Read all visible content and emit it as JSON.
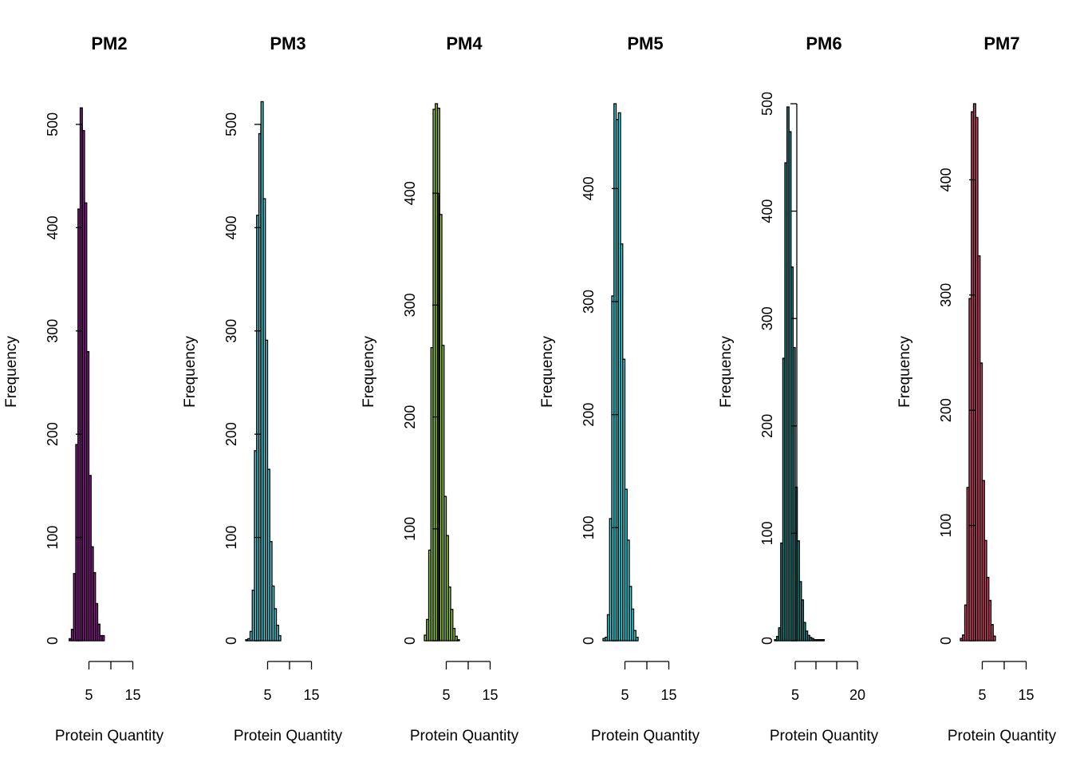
{
  "chart_data": [
    {
      "type": "bar",
      "title": "PM2",
      "xlabel": "Protein Quantity",
      "ylabel": "Frequency",
      "color": "#8B1A8B",
      "xlim": [
        0,
        20
      ],
      "ylim": [
        0,
        520
      ],
      "x_ticks": [
        5,
        10,
        15
      ],
      "x_tick_labels": [
        "5",
        "",
        "15"
      ],
      "y_ticks": [
        0,
        100,
        200,
        300,
        400,
        500
      ],
      "y_tick_labels": [
        "0",
        "100",
        "200",
        "300",
        "400",
        "500"
      ],
      "bin_start": 0.5,
      "bin_width": 0.5,
      "values": [
        2,
        11,
        65,
        190,
        418,
        516,
        494,
        424,
        280,
        160,
        91,
        66,
        36,
        16,
        5,
        5
      ]
    },
    {
      "type": "bar",
      "title": "PM3",
      "xlabel": "Protein Quantity",
      "ylabel": "Frequency",
      "color": "#4ED4DE",
      "xlim": [
        0,
        20
      ],
      "ylim": [
        0,
        520
      ],
      "x_ticks": [
        5,
        10,
        15
      ],
      "x_tick_labels": [
        "5",
        "",
        "15"
      ],
      "y_ticks": [
        0,
        100,
        200,
        300,
        400,
        500
      ],
      "y_tick_labels": [
        "0",
        "100",
        "200",
        "300",
        "400",
        "500"
      ],
      "bin_start": 0,
      "bin_width": 0.5,
      "values": [
        1,
        2,
        9,
        49,
        184,
        412,
        491,
        522,
        428,
        291,
        166,
        96,
        53,
        31,
        15,
        5
      ]
    },
    {
      "type": "bar",
      "title": "PM4",
      "xlabel": "Protein Quantity",
      "ylabel": "Frequency",
      "color": "#9BD13E",
      "xlim": [
        0,
        20
      ],
      "ylim": [
        0,
        480
      ],
      "x_ticks": [
        5,
        10,
        15
      ],
      "x_tick_labels": [
        "5",
        "",
        "15"
      ],
      "y_ticks": [
        0,
        100,
        200,
        300,
        400
      ],
      "y_tick_labels": [
        "0",
        "100",
        "200",
        "300",
        "400"
      ],
      "bin_start": 0,
      "bin_width": 0.5,
      "values": [
        5,
        19,
        81,
        262,
        475,
        480,
        476,
        381,
        264,
        129,
        94,
        48,
        28,
        11,
        4,
        1
      ]
    },
    {
      "type": "bar",
      "title": "PM5",
      "xlabel": "Protein Quantity",
      "ylabel": "Frequency",
      "color": "#28E6F0",
      "xlim": [
        0,
        20
      ],
      "ylim": [
        0,
        475
      ],
      "x_ticks": [
        5,
        10,
        15
      ],
      "x_tick_labels": [
        "5",
        "",
        "15"
      ],
      "y_ticks": [
        0,
        100,
        200,
        300,
        400
      ],
      "y_tick_labels": [
        "0",
        "100",
        "200",
        "300",
        "400"
      ],
      "bin_start": 0,
      "bin_width": 0.5,
      "values": [
        2,
        3,
        23,
        108,
        305,
        475,
        461,
        467,
        351,
        249,
        134,
        89,
        48,
        28,
        9,
        3
      ]
    },
    {
      "type": "bar",
      "title": "PM6",
      "xlabel": "Protein Quantity",
      "ylabel": "Frequency",
      "color": "#1E8E8C",
      "xlim": [
        0,
        25
      ],
      "ylim": [
        0,
        500
      ],
      "x_ticks": [
        5,
        10,
        15,
        20
      ],
      "x_tick_labels": [
        "5",
        "",
        "",
        "20"
      ],
      "y_ticks": [
        0,
        100,
        200,
        300,
        400,
        500
      ],
      "y_tick_labels": [
        "0",
        "100",
        "200",
        "300",
        "400",
        "500"
      ],
      "bin_start": 0,
      "bin_width": 0.5,
      "values": [
        1,
        4,
        12,
        91,
        263,
        445,
        497,
        474,
        348,
        273,
        143,
        93,
        55,
        38,
        17,
        9,
        5,
        3,
        2,
        1,
        1,
        1,
        1,
        1
      ]
    },
    {
      "type": "bar",
      "title": "PM7",
      "xlabel": "Protein Quantity",
      "ylabel": "Frequency",
      "color": "#D8466A",
      "xlim": [
        0,
        20
      ],
      "ylim": [
        0,
        466
      ],
      "x_ticks": [
        5,
        10,
        15
      ],
      "x_tick_labels": [
        "5",
        "",
        "15"
      ],
      "y_ticks": [
        0,
        100,
        200,
        300,
        400
      ],
      "y_tick_labels": [
        "0",
        "100",
        "200",
        "300",
        "400"
      ],
      "bin_start": 0,
      "bin_width": 0.5,
      "values": [
        2,
        5,
        31,
        133,
        297,
        459,
        466,
        454,
        334,
        241,
        139,
        87,
        55,
        35,
        14,
        4
      ]
    }
  ]
}
